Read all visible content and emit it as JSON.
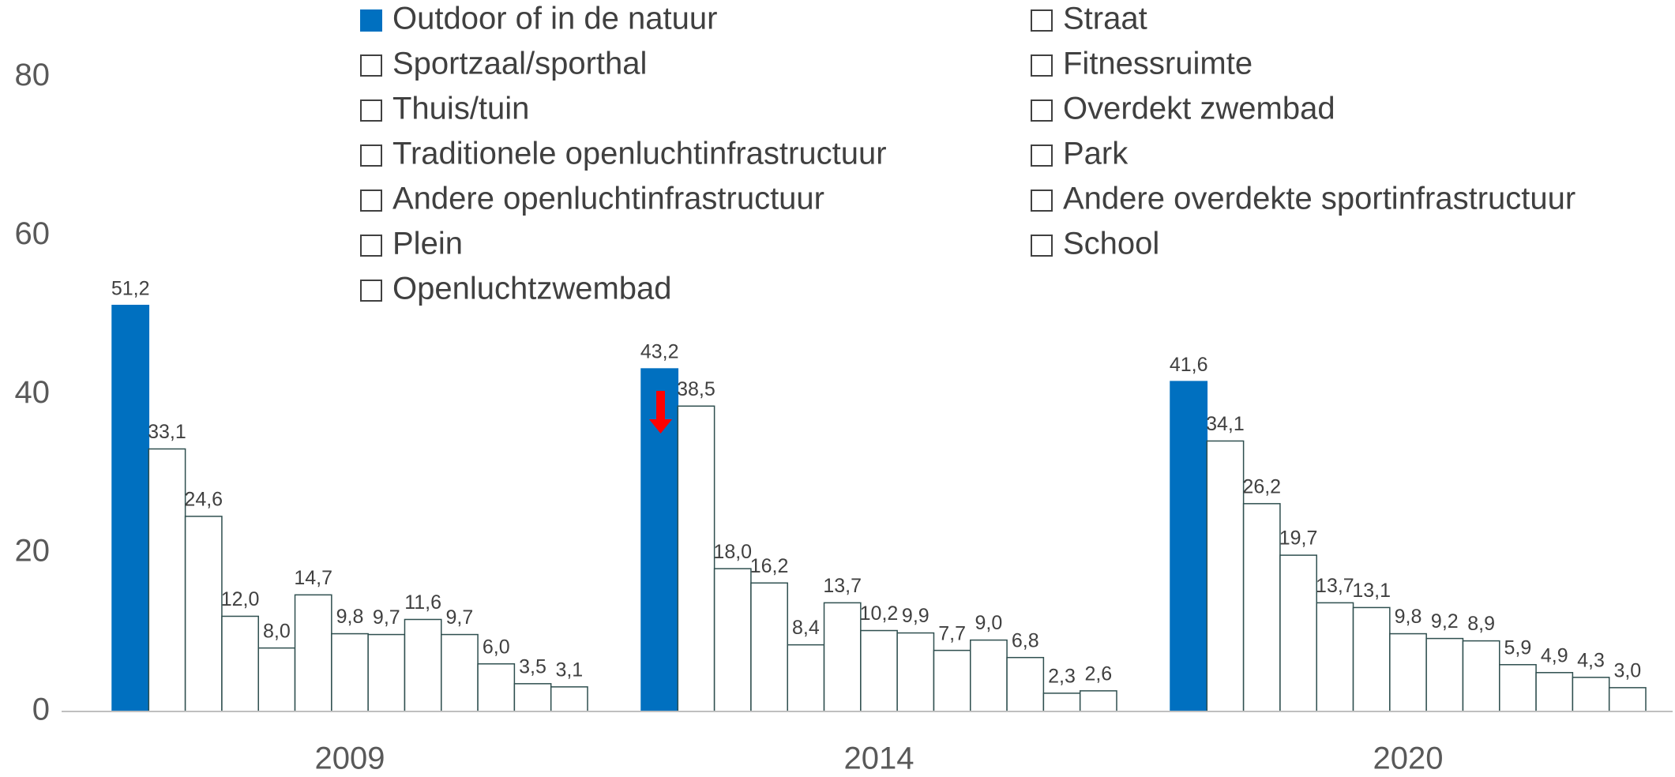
{
  "chart_data": {
    "type": "bar",
    "categories": [
      "2009",
      "2014",
      "2020"
    ],
    "ylim": [
      0,
      90
    ],
    "yticks": [
      0,
      20,
      40,
      60,
      80
    ],
    "grid": false,
    "series": [
      {
        "name": "Outdoor of in de natuur",
        "color": "#0070c0",
        "values": [
          51.2,
          43.2,
          41.6
        ],
        "value_labels": [
          "51,2",
          "43,2",
          "41,6"
        ]
      },
      {
        "name": "Straat",
        "color": "#ffffff",
        "values": [
          33.1,
          38.5,
          34.1
        ],
        "value_labels": [
          "33,1",
          "38,5",
          "34,1"
        ]
      },
      {
        "name": "Sportzaal/sporthal",
        "color": "#ffffff",
        "values": [
          24.6,
          18.0,
          26.2
        ],
        "value_labels": [
          "24,6",
          "18,0",
          "26,2"
        ]
      },
      {
        "name": "Fitnessruimte",
        "color": "#ffffff",
        "values": [
          12.0,
          16.2,
          19.7
        ],
        "value_labels": [
          "12,0",
          "16,2",
          "19,7"
        ]
      },
      {
        "name": "Thuis/tuin",
        "color": "#ffffff",
        "values": [
          8.0,
          8.4,
          13.7
        ],
        "value_labels": [
          "8,0",
          "8,4",
          "13,7"
        ]
      },
      {
        "name": "Overdekt zwembad",
        "color": "#ffffff",
        "values": [
          14.7,
          13.7,
          13.1
        ],
        "value_labels": [
          "14,7",
          "13,7",
          "13,1"
        ]
      },
      {
        "name": "Traditionele openluchtinfrastructuur",
        "color": "#ffffff",
        "values": [
          9.8,
          10.2,
          9.8
        ],
        "value_labels": [
          "9,8",
          "10,2",
          "9,8"
        ]
      },
      {
        "name": "Park",
        "color": "#ffffff",
        "values": [
          9.7,
          9.9,
          9.2
        ],
        "value_labels": [
          "9,7",
          "9,9",
          "9,2"
        ]
      },
      {
        "name": "Andere openluchtinfrastructuur",
        "color": "#ffffff",
        "values": [
          11.6,
          7.7,
          8.9
        ],
        "value_labels": [
          "11,6",
          "7,7",
          "8,9"
        ]
      },
      {
        "name": "Andere overdekte sportinfrastructuur",
        "color": "#ffffff",
        "values": [
          9.7,
          9.0,
          5.9
        ],
        "value_labels": [
          "9,7",
          "9,0",
          "5,9"
        ]
      },
      {
        "name": "Plein",
        "color": "#ffffff",
        "values": [
          6.0,
          6.8,
          4.9
        ],
        "value_labels": [
          "6,0",
          "6,8",
          "4,9"
        ]
      },
      {
        "name": "School",
        "color": "#ffffff",
        "values": [
          3.5,
          2.3,
          4.3
        ],
        "value_labels": [
          "3,5",
          "2,3",
          "4,3"
        ]
      },
      {
        "name": "Openluchtzwembad",
        "color": "#ffffff",
        "values": [
          3.1,
          2.6,
          3.0
        ],
        "value_labels": [
          "3,1",
          "2,6",
          "3,0"
        ]
      }
    ]
  }
}
